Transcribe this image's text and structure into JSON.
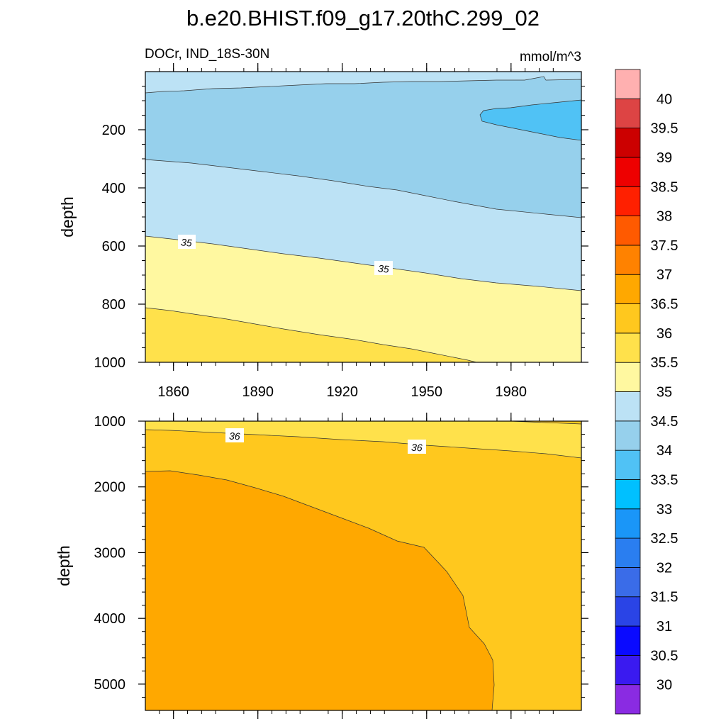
{
  "chart_data": {
    "type": "contour",
    "title": "b.e20.BHIST.f09_g17.20thC.299_02",
    "variable_label": "DOCr, IND_18S-30N",
    "units_label": "mmol/m^3",
    "x_tick_labels": [
      "1860",
      "1890",
      "1920",
      "1950",
      "1980"
    ],
    "x_tick_values": [
      1860,
      1890,
      1920,
      1950,
      1980
    ],
    "xlim": [
      1850,
      2005
    ],
    "panels": [
      {
        "name": "upper",
        "ylabel": "depth",
        "ylim": [
          0,
          1000
        ],
        "y_tick_labels": [
          "200",
          "400",
          "600",
          "800",
          "1000"
        ],
        "y_tick_values": [
          200,
          400,
          600,
          800,
          1000
        ],
        "contour_labels": [
          "35",
          "35"
        ],
        "regions": [
          {
            "range": "34.5-35",
            "color": "#bce2f5"
          },
          {
            "range": "34-34.5",
            "color": "#96d0ec"
          },
          {
            "range": "33.5-34",
            "color": "#50c2f5"
          },
          {
            "range": "35-35.5",
            "color": "#fff8a0"
          },
          {
            "range": "35.5-36",
            "color": "#ffe14b"
          }
        ]
      },
      {
        "name": "lower",
        "ylabel": "depth",
        "ylim": [
          1000,
          5400
        ],
        "y_tick_labels": [
          "1000",
          "2000",
          "3000",
          "4000",
          "5000"
        ],
        "y_tick_values": [
          1000,
          2000,
          3000,
          4000,
          5000
        ],
        "contour_labels": [
          "36",
          "36"
        ],
        "regions": [
          {
            "range": "35.5-36",
            "color": "#ffe14b"
          },
          {
            "range": "36-36.5",
            "color": "#ffc81e"
          },
          {
            "range": "36.5-37",
            "color": "#ffa800"
          }
        ]
      }
    ],
    "colorbar": {
      "labels": [
        "30",
        "30.5",
        "31",
        "31.5",
        "32",
        "32.5",
        "33",
        "33.5",
        "34",
        "34.5",
        "35",
        "35.5",
        "36",
        "36.5",
        "37",
        "37.5",
        "38",
        "38.5",
        "39",
        "39.5",
        "40"
      ],
      "colors": [
        "#8a2be2",
        "#3a1af0",
        "#0a0aff",
        "#2a44e6",
        "#3a6ce8",
        "#2a7ef0",
        "#1a96f8",
        "#00c0ff",
        "#50c2f5",
        "#96d0ec",
        "#bce2f5",
        "#fff8a0",
        "#ffe14b",
        "#ffc81e",
        "#ffa800",
        "#ff8200",
        "#ff5a00",
        "#ff2000",
        "#ee0000",
        "#cc0000",
        "#dd4444",
        "#ffb0b0"
      ]
    }
  }
}
